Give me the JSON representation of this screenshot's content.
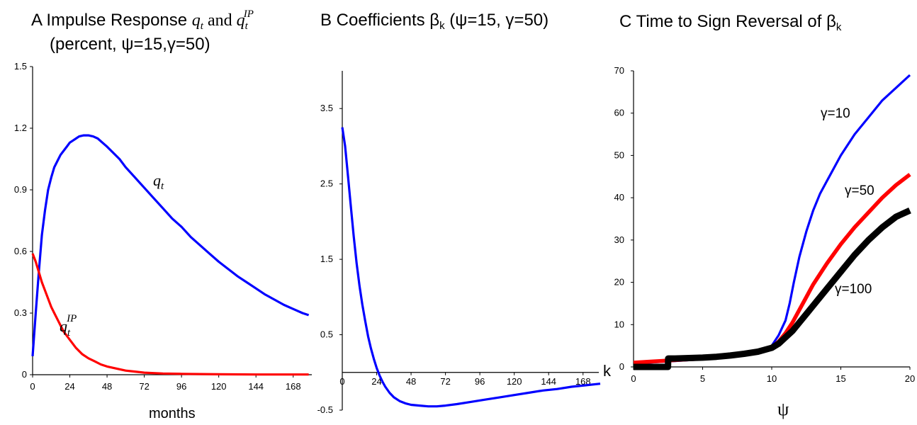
{
  "panels": {
    "A": {
      "title_prefix": "A  Impulse Response ",
      "title_q": "q",
      "title_q_sub": "t",
      "title_and": " and ",
      "title_qip": "q",
      "title_qip_sub": "t",
      "title_qip_sup": "IP",
      "title_line2": "(percent, ψ=15,γ=50)",
      "xlabel": "months",
      "label_q_main": "q",
      "label_q_sub": "t",
      "label_qip_main": "q",
      "label_qip_sub": "t",
      "label_qip_sup": "IP"
    },
    "B": {
      "title_prefix": "B  Coefficients β",
      "title_sub": "k",
      "title_suffix": " (ψ=15, γ=50)",
      "k_label": "k"
    },
    "C": {
      "title_prefix": "C  Time to Sign Reversal of β",
      "title_sub": "k",
      "xlabel": "ψ",
      "labels": [
        "γ=10",
        "γ=50",
        "γ=100"
      ]
    }
  },
  "chart_data": [
    {
      "type": "line",
      "panel": "A",
      "xlim": [
        0,
        180
      ],
      "ylim": [
        0,
        1.5
      ],
      "xticks": [
        0,
        24,
        48,
        72,
        96,
        120,
        144,
        168
      ],
      "yticks": [
        0,
        0.3,
        0.6,
        0.9,
        1.2,
        1.5
      ],
      "xtick_labels": [
        "0",
        "24",
        "48",
        "72",
        "96",
        "120",
        "144",
        "168"
      ],
      "ytick_labels": [
        "0",
        "0.3",
        "0.6",
        "0.9",
        "1.2",
        "1.5"
      ],
      "series": [
        {
          "color": "#0000ff",
          "x": [
            0,
            2,
            4,
            6,
            8,
            10,
            12,
            14,
            16,
            18,
            20,
            22,
            24,
            26,
            28,
            30,
            33,
            36,
            39,
            42,
            45,
            48,
            52,
            56,
            60,
            66,
            72,
            78,
            84,
            90,
            96,
            102,
            108,
            114,
            120,
            126,
            132,
            138,
            144,
            150,
            156,
            162,
            168,
            174,
            178
          ],
          "y": [
            0.09,
            0.3,
            0.5,
            0.68,
            0.8,
            0.9,
            0.96,
            1.01,
            1.04,
            1.07,
            1.09,
            1.11,
            1.13,
            1.14,
            1.15,
            1.16,
            1.165,
            1.165,
            1.16,
            1.15,
            1.13,
            1.11,
            1.08,
            1.05,
            1.01,
            0.96,
            0.91,
            0.86,
            0.81,
            0.76,
            0.72,
            0.67,
            0.63,
            0.59,
            0.55,
            0.515,
            0.48,
            0.45,
            0.42,
            0.39,
            0.365,
            0.34,
            0.32,
            0.3,
            0.29
          ]
        },
        {
          "color": "#ff0000",
          "x": [
            0,
            2,
            4,
            6,
            8,
            10,
            12,
            14,
            16,
            18,
            20,
            24,
            28,
            32,
            36,
            40,
            44,
            48,
            54,
            60,
            66,
            72,
            84,
            96,
            120,
            144,
            168,
            178
          ],
          "y": [
            0.59,
            0.55,
            0.5,
            0.45,
            0.41,
            0.37,
            0.33,
            0.3,
            0.27,
            0.24,
            0.21,
            0.17,
            0.13,
            0.1,
            0.08,
            0.065,
            0.05,
            0.04,
            0.03,
            0.02,
            0.015,
            0.01,
            0.006,
            0.004,
            0.002,
            0.001,
            0.001,
            0.001
          ]
        }
      ]
    },
    {
      "type": "line",
      "panel": "B",
      "xlim": [
        0,
        180
      ],
      "ylim": [
        -0.5,
        4
      ],
      "xticks": [
        0,
        24,
        48,
        72,
        96,
        120,
        144,
        168
      ],
      "yticks": [
        -0.5,
        0.5,
        1.5,
        2.5,
        3.5
      ],
      "xtick_labels": [
        "0",
        "24",
        "48",
        "72",
        "96",
        "120",
        "144",
        "168"
      ],
      "ytick_labels": [
        "-0.5",
        "0.5",
        "1.5",
        "2.5",
        "3.5"
      ],
      "series": [
        {
          "color": "#0000ff",
          "x": [
            0,
            2,
            4,
            6,
            8,
            10,
            12,
            14,
            16,
            18,
            20,
            22,
            24,
            26,
            28,
            30,
            33,
            36,
            40,
            44,
            48,
            54,
            60,
            66,
            72,
            80,
            90,
            100,
            110,
            120,
            130,
            140,
            150,
            160,
            170,
            180
          ],
          "y": [
            3.25,
            3.0,
            2.6,
            2.2,
            1.8,
            1.45,
            1.15,
            0.9,
            0.68,
            0.48,
            0.32,
            0.18,
            0.06,
            -0.04,
            -0.12,
            -0.19,
            -0.27,
            -0.33,
            -0.38,
            -0.41,
            -0.43,
            -0.44,
            -0.45,
            -0.45,
            -0.44,
            -0.42,
            -0.39,
            -0.36,
            -0.33,
            -0.3,
            -0.27,
            -0.24,
            -0.22,
            -0.19,
            -0.17,
            -0.15
          ]
        }
      ]
    },
    {
      "type": "line",
      "panel": "C",
      "xlim": [
        0,
        20
      ],
      "ylim": [
        0,
        70
      ],
      "xticks": [
        0,
        5,
        10,
        15,
        20
      ],
      "yticks": [
        0,
        10,
        20,
        30,
        40,
        50,
        60,
        70
      ],
      "xtick_labels": [
        "0",
        "5",
        "10",
        "15",
        "20"
      ],
      "ytick_labels": [
        "0",
        "10",
        "20",
        "30",
        "40",
        "50",
        "60",
        "70"
      ],
      "series": [
        {
          "name": "γ=10",
          "color": "#0000ff",
          "x": [
            0,
            0.5,
            1,
            2,
            3,
            4,
            5,
            6,
            7,
            8,
            9,
            9.5,
            10,
            10.5,
            11,
            11.3,
            11.6,
            12,
            12.5,
            13,
            13.5,
            14,
            15,
            16,
            17,
            18,
            19,
            20
          ],
          "y": [
            1,
            1,
            1,
            1.2,
            1.4,
            1.6,
            1.8,
            2.0,
            2.3,
            2.8,
            3.5,
            4.0,
            5.0,
            7.5,
            11,
            15,
            20,
            26,
            32,
            37,
            41,
            44,
            50,
            55,
            59,
            63,
            66,
            69
          ]
        },
        {
          "name": "γ=50",
          "color": "#ff0000",
          "x": [
            0,
            1,
            2,
            3,
            4,
            5,
            6,
            7,
            8,
            9,
            10,
            10.5,
            11,
            11.5,
            12,
            12.5,
            13,
            14,
            15,
            16,
            17,
            18,
            19,
            20
          ],
          "y": [
            1,
            1.2,
            1.4,
            1.6,
            1.8,
            2.0,
            2.2,
            2.5,
            3.0,
            3.6,
            4.6,
            6.0,
            8.0,
            10.5,
            13.5,
            16.5,
            19.5,
            24.5,
            29,
            33,
            36.5,
            40,
            43,
            45.5
          ]
        },
        {
          "name": "γ=100",
          "color": "#000000",
          "x": [
            0,
            1,
            2,
            2.49,
            2.51,
            3,
            4,
            5,
            6,
            7,
            8,
            9,
            10,
            10.5,
            11,
            11.5,
            12,
            12.5,
            13,
            14,
            15,
            16,
            17,
            18,
            19,
            20
          ],
          "y": [
            0,
            0,
            0,
            0,
            2,
            2,
            2.1,
            2.2,
            2.4,
            2.7,
            3.1,
            3.6,
            4.5,
            5.5,
            7.0,
            8.5,
            10.5,
            12.5,
            14.5,
            18.5,
            22.5,
            26.5,
            30,
            33,
            35.5,
            37
          ]
        }
      ]
    }
  ]
}
